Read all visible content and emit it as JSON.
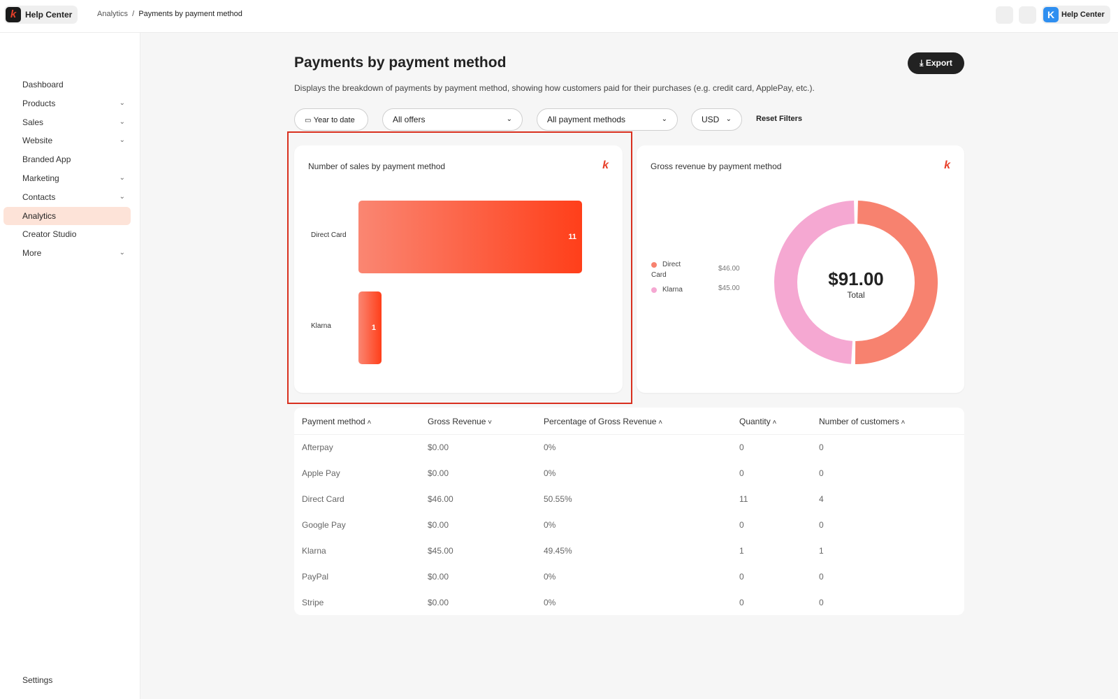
{
  "topbar": {
    "brand": "Help Center",
    "breadcrumb": [
      "Analytics",
      "Payments by payment method"
    ],
    "right_label": "Help Center"
  },
  "sidebar": {
    "items": [
      {
        "label": "Dashboard",
        "chevron": false
      },
      {
        "label": "Products",
        "chevron": true
      },
      {
        "label": "Sales",
        "chevron": true
      },
      {
        "label": "Website",
        "chevron": true
      },
      {
        "label": "Branded App",
        "chevron": false
      },
      {
        "label": "Marketing",
        "chevron": true
      },
      {
        "label": "Contacts",
        "chevron": true
      },
      {
        "label": "Analytics",
        "chevron": false,
        "active": true
      },
      {
        "label": "Creator Studio",
        "chevron": false
      },
      {
        "label": "More",
        "chevron": true
      }
    ],
    "settings": "Settings"
  },
  "page": {
    "title": "Payments by payment method",
    "description": "Displays the breakdown of payments by payment method, showing how customers paid for their purchases (e.g. credit card, ApplePay, etc.).",
    "export": "Export"
  },
  "filters": {
    "date": "Year to date",
    "offers": "All offers",
    "methods": "All payment methods",
    "currency": "USD",
    "reset": "Reset Filters"
  },
  "chart_data": [
    {
      "type": "bar",
      "orientation": "horizontal",
      "title": "Number of sales by payment method",
      "categories": [
        "Direct Card",
        "Klarna"
      ],
      "values": [
        11,
        1
      ],
      "colors": [
        "#fa8672",
        "#ff3f1a"
      ]
    },
    {
      "type": "pie",
      "variant": "donut",
      "title": "Gross revenue by payment method",
      "categories": [
        "Direct Card",
        "Klarna"
      ],
      "values": [
        46.0,
        45.0
      ],
      "value_labels": [
        "$46.00",
        "$45.00"
      ],
      "colors": [
        "#f7826f",
        "#f5a8d2"
      ],
      "center_value": "$91.00",
      "center_label": "Total",
      "legend": "left"
    }
  ],
  "table": {
    "headers": [
      {
        "label": "Payment method",
        "sort": "^"
      },
      {
        "label": "Gross Revenue",
        "sort": "v"
      },
      {
        "label": "Percentage of Gross Revenue",
        "sort": "^"
      },
      {
        "label": "Quantity",
        "sort": "^"
      },
      {
        "label": "Number of customers",
        "sort": "^"
      }
    ],
    "rows": [
      [
        "Afterpay",
        "$0.00",
        "0%",
        "0",
        "0"
      ],
      [
        "Apple Pay",
        "$0.00",
        "0%",
        "0",
        "0"
      ],
      [
        "Direct Card",
        "$46.00",
        "50.55%",
        "11",
        "4"
      ],
      [
        "Google Pay",
        "$0.00",
        "0%",
        "0",
        "0"
      ],
      [
        "Klarna",
        "$45.00",
        "49.45%",
        "1",
        "1"
      ],
      [
        "PayPal",
        "$0.00",
        "0%",
        "0",
        "0"
      ],
      [
        "Stripe",
        "$0.00",
        "0%",
        "0",
        "0"
      ]
    ]
  }
}
